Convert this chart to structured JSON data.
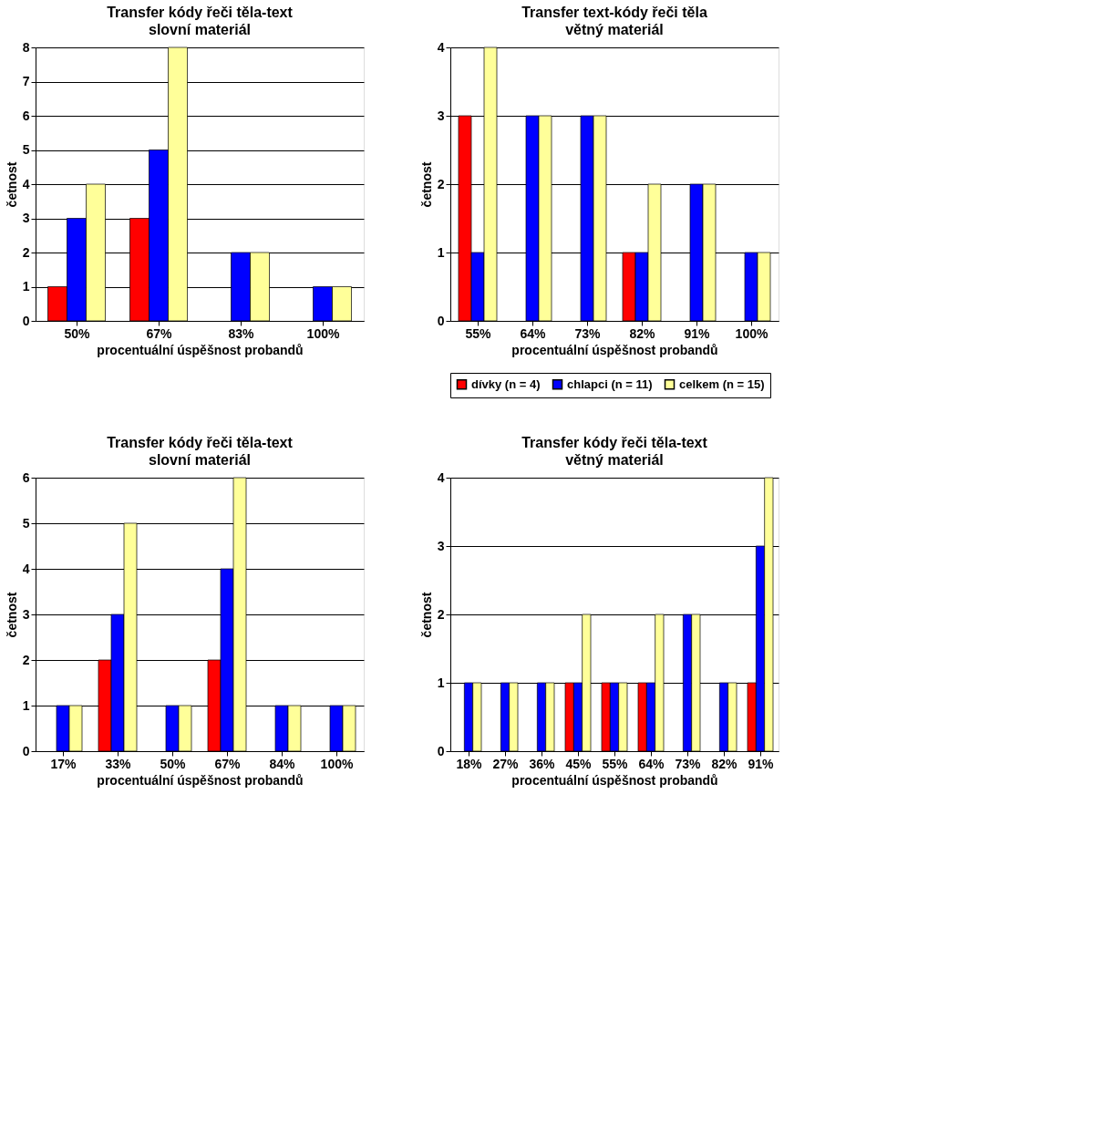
{
  "chart_data": [
    {
      "type": "bar",
      "title": "Transfer kódy řeči těla-text",
      "subtitle": "slovní materiál",
      "xlabel": "procentuální úspěšnost probandů",
      "ylabel": "četnost",
      "categories": [
        "50%",
        "67%",
        "83%",
        "100%"
      ],
      "ylim": [
        0,
        8
      ],
      "yticks": [
        0,
        1,
        2,
        3,
        4,
        5,
        6,
        7,
        8
      ],
      "grid": "y",
      "legend": false,
      "series": [
        {
          "color": "#ff0000",
          "values": [
            1,
            3,
            0,
            0
          ]
        },
        {
          "color": "#0000ff",
          "values": [
            3,
            5,
            2,
            1
          ]
        },
        {
          "color": "#ffff99",
          "values": [
            4,
            8,
            2,
            1
          ]
        }
      ]
    },
    {
      "type": "bar",
      "title": "Transfer text-kódy řeči těla",
      "subtitle": "větný materiál",
      "xlabel": "procentuální úspěšnost probandů",
      "ylabel": "četnost",
      "categories": [
        "55%",
        "64%",
        "73%",
        "82%",
        "91%",
        "100%"
      ],
      "ylim": [
        0,
        4
      ],
      "yticks": [
        0,
        1,
        2,
        3,
        4
      ],
      "grid": "y",
      "legend": "bottom",
      "series": [
        {
          "name": "dívky (n = 4)",
          "color": "#ff0000",
          "values": [
            3,
            0,
            0,
            1,
            0,
            0
          ]
        },
        {
          "name": "chlapci (n = 11)",
          "color": "#0000ff",
          "values": [
            1,
            3,
            3,
            1,
            2,
            1
          ]
        },
        {
          "name": "celkem (n = 15)",
          "color": "#ffff99",
          "values": [
            4,
            3,
            3,
            2,
            2,
            1
          ]
        }
      ]
    },
    {
      "type": "bar",
      "title": "Transfer kódy řeči těla-text",
      "subtitle": "slovní materiál",
      "xlabel": "procentuální úspěšnost probandů",
      "ylabel": "četnost",
      "categories": [
        "17%",
        "33%",
        "50%",
        "67%",
        "84%",
        "100%"
      ],
      "ylim": [
        0,
        6
      ],
      "yticks": [
        0,
        1,
        2,
        3,
        4,
        5,
        6
      ],
      "grid": "y",
      "legend": false,
      "series": [
        {
          "color": "#ff0000",
          "values": [
            0,
            2,
            0,
            2,
            0,
            0
          ]
        },
        {
          "color": "#0000ff",
          "values": [
            1,
            3,
            1,
            4,
            1,
            1
          ]
        },
        {
          "color": "#ffff99",
          "values": [
            1,
            5,
            1,
            6,
            1,
            1
          ]
        }
      ]
    },
    {
      "type": "bar",
      "title": "Transfer kódy řeči těla-text",
      "subtitle": "větný materiál",
      "xlabel": "procentuální úspěšnost probandů",
      "ylabel": "četnost",
      "categories": [
        "18%",
        "27%",
        "36%",
        "45%",
        "55%",
        "64%",
        "73%",
        "82%",
        "91%"
      ],
      "ylim": [
        0,
        4
      ],
      "yticks": [
        0,
        1,
        2,
        3,
        4
      ],
      "grid": "y",
      "legend": false,
      "series": [
        {
          "color": "#ff0000",
          "values": [
            0,
            0,
            0,
            1,
            1,
            1,
            0,
            0,
            1
          ]
        },
        {
          "color": "#0000ff",
          "values": [
            1,
            1,
            1,
            1,
            1,
            1,
            2,
            1,
            3
          ]
        },
        {
          "color": "#ffff99",
          "values": [
            1,
            1,
            1,
            2,
            1,
            2,
            2,
            1,
            4
          ]
        }
      ]
    }
  ]
}
